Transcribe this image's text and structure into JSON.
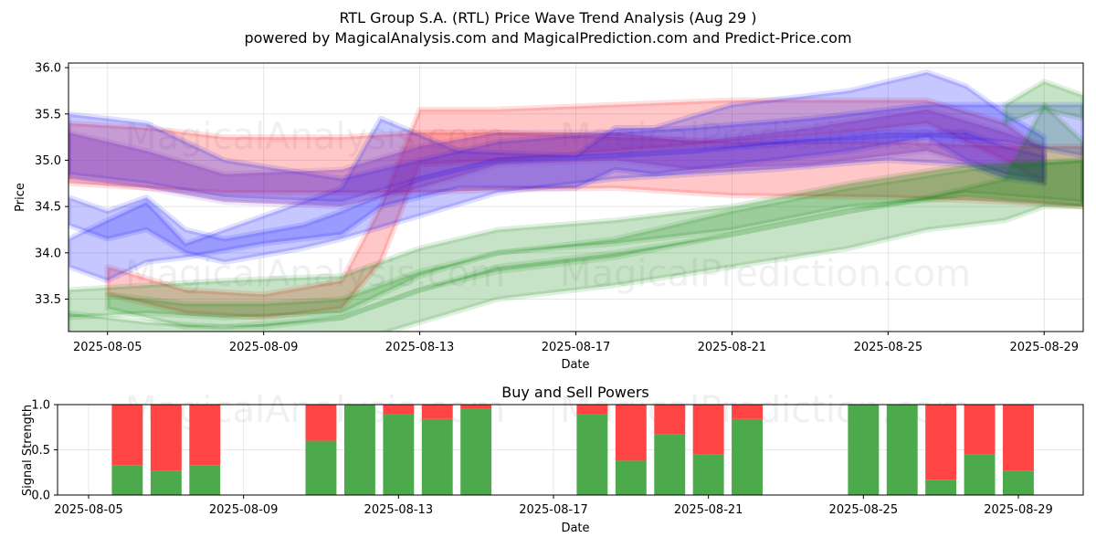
{
  "title_line1": "RTL Group S.A. (RTL) Price Wave Trend Analysis (Aug 29 )",
  "title_line2": "powered by MagicalAnalysis.com and MagicalPrediction.com and Predict-Price.com",
  "watermarks": [
    "MagicalAnalysis.com",
    "MagicalPrediction.com"
  ],
  "chart_data": [
    {
      "type": "area",
      "xlabel": "Date",
      "ylabel": "Price",
      "xlim": [
        "2025-08-04",
        "2025-08-30"
      ],
      "ylim": [
        33.15,
        36.05
      ],
      "yticks": [
        "33.5",
        "34.0",
        "34.5",
        "35.0",
        "35.5",
        "36.0"
      ],
      "xticks": [
        "2025-08-05",
        "2025-08-09",
        "2025-08-13",
        "2025-08-17",
        "2025-08-21",
        "2025-08-25",
        "2025-08-29"
      ],
      "grid": true,
      "colors": {
        "red": "#ff0000",
        "blue": "#0000ff",
        "green": "#008000",
        "purple": "#7b2fbe"
      },
      "series": [
        {
          "color": "red",
          "x": [
            "2025-08-04",
            "2025-08-06",
            "2025-08-08",
            "2025-08-11",
            "2025-08-13",
            "2025-08-15",
            "2025-08-18",
            "2025-08-21",
            "2025-08-25",
            "2025-08-28",
            "2025-08-30"
          ],
          "low": [
            34.75,
            34.7,
            34.65,
            34.65,
            34.65,
            34.68,
            34.7,
            34.62,
            34.6,
            34.55,
            34.5
          ],
          "high": [
            35.4,
            35.35,
            35.25,
            35.25,
            35.3,
            35.3,
            35.25,
            35.2,
            35.2,
            35.15,
            35.15
          ]
        },
        {
          "color": "red",
          "x": [
            "2025-08-05",
            "2025-08-07",
            "2025-08-09",
            "2025-08-11",
            "2025-08-12",
            "2025-08-13",
            "2025-08-15",
            "2025-08-18",
            "2025-08-21",
            "2025-08-24",
            "2025-08-26",
            "2025-08-28",
            "2025-08-29"
          ],
          "low": [
            33.55,
            33.35,
            33.3,
            33.4,
            33.9,
            34.95,
            35.0,
            35.1,
            35.2,
            35.3,
            35.4,
            35.0,
            34.75
          ],
          "high": [
            33.85,
            33.6,
            33.55,
            33.7,
            34.5,
            35.55,
            35.55,
            35.6,
            35.65,
            35.65,
            35.65,
            35.4,
            35.1
          ]
        },
        {
          "color": "blue",
          "x": [
            "2025-08-04",
            "2025-08-06",
            "2025-08-08",
            "2025-08-11",
            "2025-08-13",
            "2025-08-15",
            "2025-08-18",
            "2025-08-20",
            "2025-08-23",
            "2025-08-26",
            "2025-08-28",
            "2025-08-30"
          ],
          "low": [
            34.85,
            34.75,
            34.6,
            34.55,
            34.8,
            35.0,
            35.05,
            35.1,
            35.2,
            35.25,
            35.2,
            35.05
          ],
          "high": [
            35.5,
            35.4,
            35.0,
            34.8,
            35.0,
            35.2,
            35.3,
            35.35,
            35.45,
            35.6,
            35.6,
            35.6
          ]
        },
        {
          "color": "blue",
          "x": [
            "2025-08-04",
            "2025-08-05",
            "2025-08-06",
            "2025-08-07",
            "2025-08-09",
            "2025-08-11",
            "2025-08-12",
            "2025-08-14",
            "2025-08-17",
            "2025-08-18",
            "2025-08-19",
            "2025-08-21",
            "2025-08-24",
            "2025-08-26",
            "2025-08-27",
            "2025-08-28",
            "2025-08-29"
          ],
          "low": [
            33.85,
            33.7,
            33.9,
            33.95,
            34.1,
            34.2,
            34.5,
            34.7,
            34.7,
            34.9,
            34.85,
            34.95,
            35.1,
            35.25,
            35.0,
            34.85,
            34.8
          ],
          "high": [
            34.15,
            34.35,
            34.55,
            34.1,
            34.4,
            34.7,
            35.45,
            35.1,
            35.05,
            35.35,
            35.35,
            35.6,
            35.75,
            35.95,
            35.8,
            35.5,
            35.25
          ]
        },
        {
          "color": "blue",
          "x": [
            "2025-08-04",
            "2025-08-05",
            "2025-08-06",
            "2025-08-07",
            "2025-08-08",
            "2025-08-10",
            "2025-08-11",
            "2025-08-13",
            "2025-08-15",
            "2025-08-18",
            "2025-08-20",
            "2025-08-22",
            "2025-08-25",
            "2025-08-27",
            "2025-08-28",
            "2025-08-29"
          ],
          "low": [
            34.3,
            34.15,
            34.25,
            34.0,
            33.9,
            34.05,
            34.15,
            34.4,
            34.65,
            34.8,
            34.85,
            34.9,
            35.0,
            34.95,
            34.8,
            34.75
          ],
          "high": [
            34.6,
            34.45,
            34.6,
            34.25,
            34.15,
            34.3,
            34.45,
            34.8,
            35.0,
            35.05,
            35.1,
            35.2,
            35.3,
            35.3,
            35.15,
            35.05
          ]
        },
        {
          "color": "purple",
          "x": [
            "2025-08-04",
            "2025-08-06",
            "2025-08-08",
            "2025-08-11",
            "2025-08-13",
            "2025-08-15",
            "2025-08-18",
            "2025-08-20",
            "2025-08-23",
            "2025-08-26",
            "2025-08-28",
            "2025-08-29"
          ],
          "low": [
            34.8,
            34.7,
            34.55,
            34.5,
            34.7,
            34.95,
            35.0,
            34.9,
            34.95,
            35.1,
            34.85,
            34.75
          ],
          "high": [
            35.3,
            35.1,
            34.85,
            34.9,
            35.15,
            35.3,
            35.3,
            35.2,
            35.35,
            35.55,
            35.3,
            35.15
          ]
        },
        {
          "color": "green",
          "x": [
            "2025-08-04",
            "2025-08-06",
            "2025-08-08",
            "2025-08-11",
            "2025-08-13",
            "2025-08-15",
            "2025-08-18",
            "2025-08-21",
            "2025-08-24",
            "2025-08-27",
            "2025-08-30"
          ],
          "low": [
            33.3,
            33.35,
            33.3,
            33.35,
            33.75,
            34.0,
            34.1,
            34.25,
            34.5,
            34.6,
            34.5
          ],
          "high": [
            33.6,
            33.65,
            33.7,
            33.75,
            34.05,
            34.25,
            34.35,
            34.5,
            34.75,
            34.95,
            35.0
          ]
        },
        {
          "color": "green",
          "x": [
            "2025-08-04",
            "2025-08-06",
            "2025-08-08",
            "2025-08-11",
            "2025-08-13",
            "2025-08-15",
            "2025-08-18",
            "2025-08-21",
            "2025-08-24",
            "2025-08-26",
            "2025-08-28",
            "2025-08-29",
            "2025-08-30"
          ],
          "low": [
            33.1,
            33.05,
            33.0,
            33.0,
            33.25,
            33.5,
            33.65,
            33.85,
            34.05,
            34.25,
            34.35,
            34.5,
            34.5
          ],
          "high": [
            33.35,
            33.25,
            33.2,
            33.3,
            33.6,
            33.85,
            34.0,
            34.2,
            34.45,
            34.6,
            34.8,
            35.6,
            35.2
          ]
        },
        {
          "color": "green",
          "x": [
            "2025-08-05",
            "2025-08-07",
            "2025-08-09",
            "2025-08-11",
            "2025-08-13",
            "2025-08-15",
            "2025-08-18",
            "2025-08-21",
            "2025-08-24",
            "2025-08-27",
            "2025-08-30"
          ],
          "low": [
            33.4,
            33.2,
            33.2,
            33.3,
            33.6,
            33.8,
            33.95,
            34.2,
            34.45,
            34.65,
            34.55
          ],
          "high": [
            33.55,
            33.45,
            33.45,
            33.5,
            33.8,
            34.0,
            34.15,
            34.45,
            34.7,
            34.9,
            35.0
          ]
        },
        {
          "color": "green",
          "x": [
            "2025-08-28",
            "2025-08-29",
            "2025-08-30"
          ],
          "low": [
            35.4,
            35.55,
            35.45
          ],
          "high": [
            35.6,
            35.85,
            35.7
          ]
        }
      ]
    },
    {
      "type": "bar",
      "title": "Buy and Sell Powers",
      "xlabel": "Date",
      "ylabel": "Signal Strength",
      "ylim": [
        0,
        1.0
      ],
      "yticks": [
        "0.0",
        "0.5",
        "1.0"
      ],
      "xticks": [
        "2025-08-05",
        "2025-08-09",
        "2025-08-13",
        "2025-08-17",
        "2025-08-21",
        "2025-08-25",
        "2025-08-29"
      ],
      "colors": {
        "buy": "#4caa4c",
        "sell": "#ff4444"
      },
      "categories": [
        "2025-08-06",
        "2025-08-07",
        "2025-08-08",
        "2025-08-11",
        "2025-08-12",
        "2025-08-13",
        "2025-08-14",
        "2025-08-15",
        "2025-08-18",
        "2025-08-19",
        "2025-08-20",
        "2025-08-21",
        "2025-08-22",
        "2025-08-25",
        "2025-08-26",
        "2025-08-27",
        "2025-08-28",
        "2025-08-29"
      ],
      "series": [
        {
          "name": "buy",
          "values": [
            0.33,
            0.27,
            0.33,
            0.6,
            1.0,
            0.89,
            0.84,
            0.95,
            0.89,
            0.38,
            0.67,
            0.45,
            0.84,
            1.0,
            1.0,
            0.17,
            0.45,
            0.27
          ]
        },
        {
          "name": "sell",
          "values": [
            0.67,
            0.73,
            0.67,
            0.4,
            0.0,
            0.11,
            0.16,
            0.05,
            0.11,
            0.62,
            0.33,
            0.55,
            0.16,
            0.0,
            0.0,
            0.83,
            0.55,
            0.73
          ]
        }
      ]
    }
  ]
}
